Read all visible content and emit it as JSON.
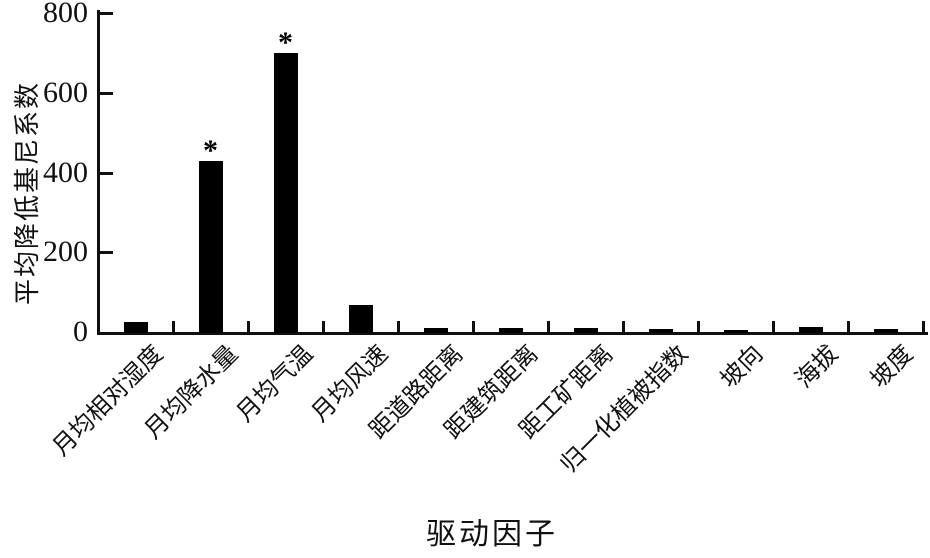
{
  "chart_data": {
    "type": "bar",
    "title": "",
    "xlabel": "驱动因子",
    "ylabel": "平均降低基尼系数",
    "categories": [
      "月均相对湿度",
      "月均降水量",
      "月均气温",
      "月均风速",
      "距道路距离",
      "距建筑距离",
      "距工矿距离",
      "归一化植被指数",
      "坡向",
      "海拔",
      "坡度"
    ],
    "values": [
      25,
      430,
      700,
      68,
      10,
      9,
      9,
      7,
      6,
      12,
      7
    ],
    "significance_marks": [
      {
        "category_index": 1,
        "category": "月均降水量",
        "symbol": "*"
      },
      {
        "category_index": 2,
        "category": "月均气温",
        "symbol": "*"
      }
    ],
    "ylim": [
      0,
      800
    ],
    "yticks": [
      0,
      200,
      400,
      600,
      800
    ],
    "grid": false,
    "legend_position": "none",
    "bar_color": "#000000",
    "axis_color": "#111111",
    "background_color": "#ffffff",
    "xticklabel_rotation_deg": 45
  }
}
